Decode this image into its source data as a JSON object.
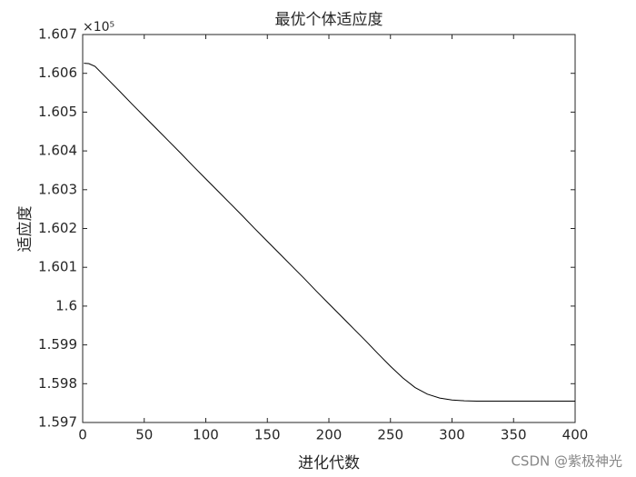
{
  "chart_data": {
    "type": "line",
    "title": "最优个体适应度",
    "x_label": "进化代数",
    "y_label": "适应度",
    "y_exponent_label": "×10⁵",
    "x": [
      1,
      5,
      10,
      20,
      30,
      40,
      50,
      60,
      70,
      80,
      90,
      100,
      110,
      120,
      130,
      140,
      150,
      160,
      170,
      180,
      190,
      200,
      210,
      220,
      230,
      240,
      250,
      260,
      270,
      280,
      290,
      300,
      310,
      320,
      350,
      400
    ],
    "series": [
      {
        "color": "#000000",
        "values": [
          1.60626,
          1.60625,
          1.60618,
          1.60586,
          1.60554,
          1.60521,
          1.60489,
          1.60457,
          1.60425,
          1.60393,
          1.6036,
          1.60328,
          1.60296,
          1.60264,
          1.60232,
          1.60199,
          1.60167,
          1.60135,
          1.60103,
          1.60071,
          1.60038,
          1.60006,
          1.59974,
          1.59942,
          1.5991,
          1.59877,
          1.59845,
          1.59815,
          1.5979,
          1.59773,
          1.59763,
          1.59758,
          1.59756,
          1.59755,
          1.59755,
          1.59755
        ]
      }
    ],
    "xlim": [
      0,
      400
    ],
    "xticks": [
      0,
      50,
      100,
      150,
      200,
      250,
      300,
      350,
      400
    ],
    "ylim": [
      1.597,
      1.607
    ],
    "yticks": [
      1.597,
      1.598,
      1.599,
      1.6,
      1.601,
      1.602,
      1.603,
      1.604,
      1.605,
      1.606,
      1.607
    ],
    "grid": false
  },
  "watermark": "CSDN @紫极神光"
}
